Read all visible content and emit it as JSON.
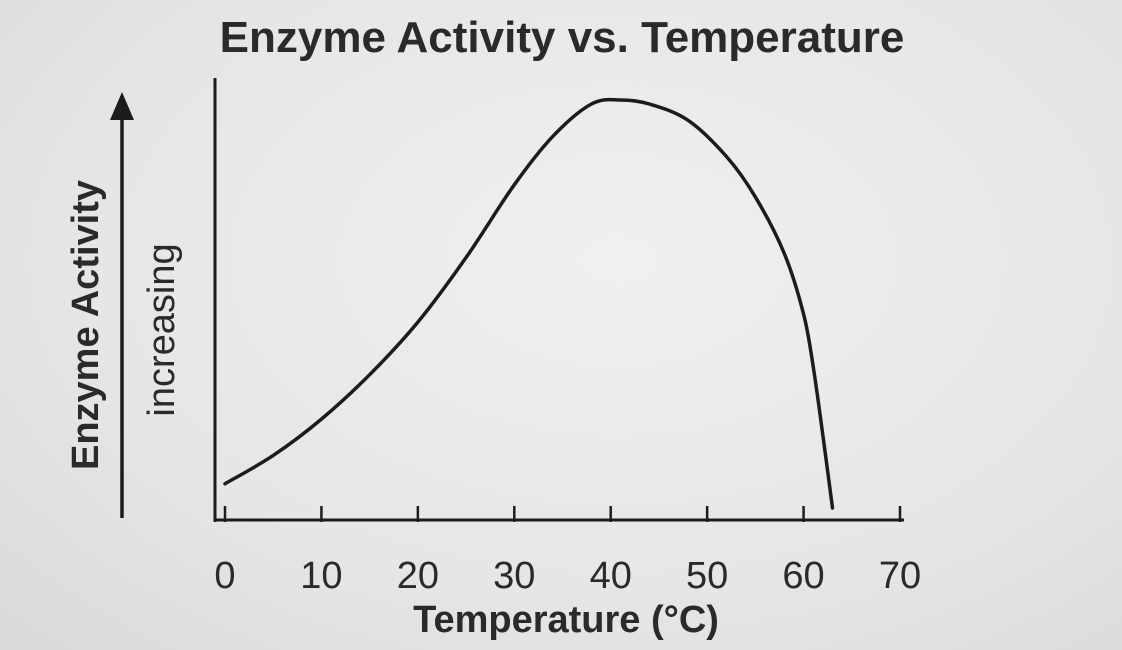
{
  "chart_data": {
    "type": "line",
    "title": "Enzyme Activity vs. Temperature",
    "xlabel": "Temperature (°C)",
    "ylabel": "Enzyme Activity",
    "ylabel_secondary": "increasing",
    "xlim": [
      0,
      70
    ],
    "ylim": [
      0,
      100
    ],
    "x_ticks": [
      0,
      10,
      20,
      30,
      40,
      50,
      60,
      70
    ],
    "x_tick_labels": [
      "0",
      "10",
      "20",
      "30",
      "40",
      "50",
      "60",
      "70"
    ],
    "grid": false,
    "legend": "none",
    "series": [
      {
        "values_x": [
          0,
          5,
          10,
          15,
          20,
          25,
          30,
          34,
          38,
          41,
          44,
          48,
          52,
          55,
          58,
          60,
          61,
          62,
          63
        ],
        "values_y": [
          6,
          13,
          22,
          33,
          46,
          62,
          80,
          92,
          100,
          101,
          100,
          96,
          87,
          77,
          63,
          48,
          35,
          18,
          0
        ]
      }
    ],
    "colors": {
      "line": "#1c1c1c",
      "text": "#2a2a2a",
      "background": "#e9e9e9"
    }
  }
}
